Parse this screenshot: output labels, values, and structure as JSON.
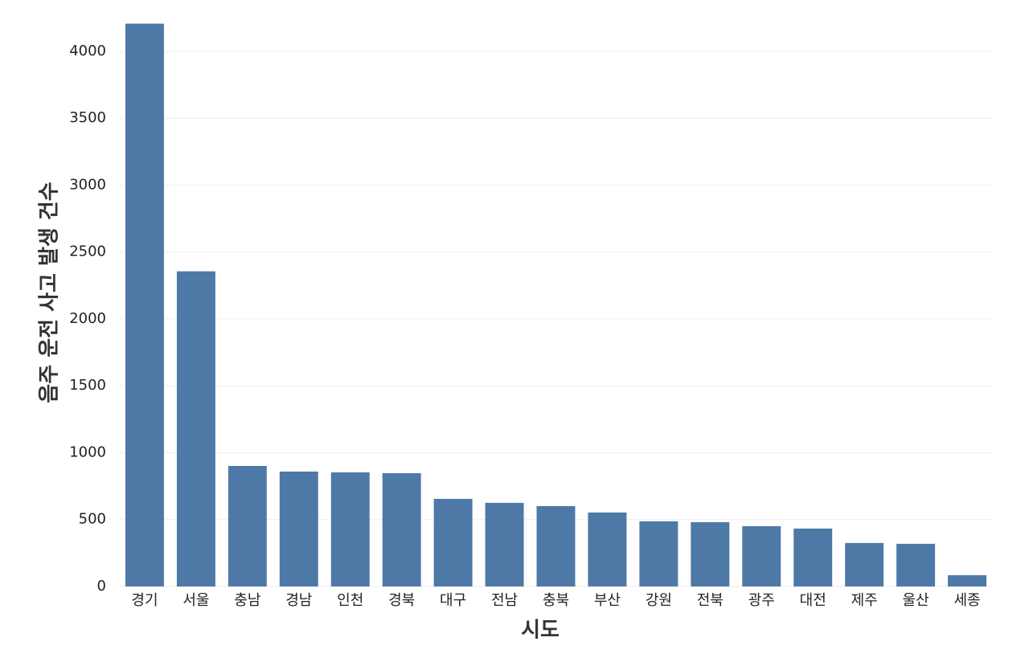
{
  "chart_data": {
    "type": "bar",
    "x_label": "시도",
    "y_label": "음주 운전 사고 발생 건수",
    "categories": [
      "경기",
      "서울",
      "충남",
      "경남",
      "인천",
      "경북",
      "대구",
      "전남",
      "충북",
      "부산",
      "강원",
      "전북",
      "광주",
      "대전",
      "제주",
      "울산",
      "세종"
    ],
    "values": [
      4207,
      2356,
      901,
      859,
      853,
      847,
      655,
      625,
      601,
      553,
      487,
      481,
      451,
      433,
      325,
      319,
      84
    ],
    "color": "#4e79a7",
    "ylim": [
      0,
      4300
    ],
    "yticks": [
      0,
      500,
      1000,
      1500,
      2000,
      2500,
      3000,
      3500,
      4000
    ],
    "grid": true
  }
}
